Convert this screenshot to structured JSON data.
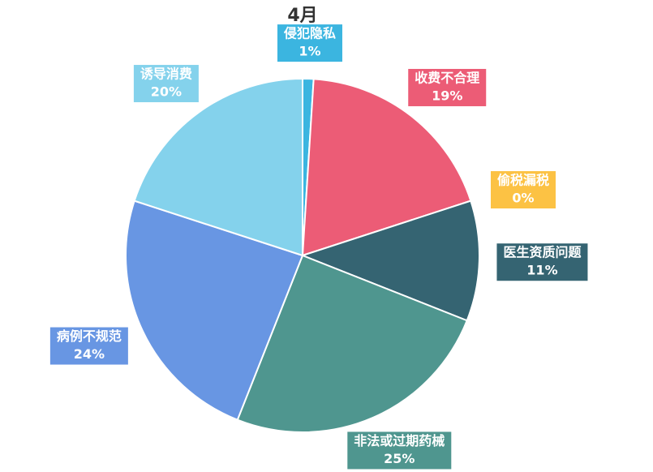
{
  "chart_data": {
    "type": "pie",
    "title": "4月",
    "categories": [
      "侵犯隐私",
      "收费不合理",
      "偷税漏税",
      "医生资质问题",
      "非法或过期药械",
      "病例不规范",
      "诱导消费"
    ],
    "values": [
      1,
      19,
      0,
      11,
      25,
      24,
      20
    ],
    "value_labels": [
      "1%",
      "19%",
      "0%",
      "11%",
      "25%",
      "24%",
      "20%"
    ],
    "colors": [
      "#3bb5e0",
      "#ec5c76",
      "#fcc244",
      "#356472",
      "#4f968f",
      "#6896e3",
      "#84d2ec"
    ]
  }
}
